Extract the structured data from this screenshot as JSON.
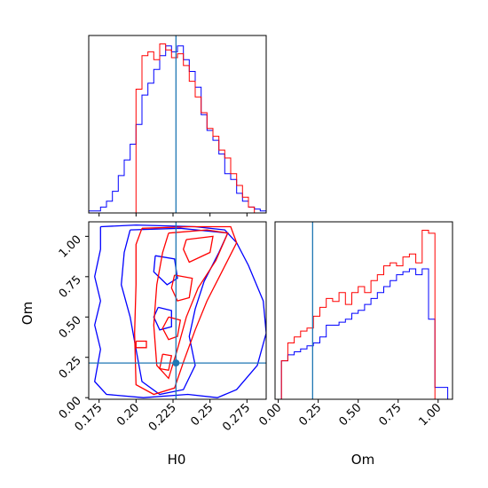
{
  "chart_data": {
    "type": "corner",
    "variables": [
      "H0",
      "Om"
    ],
    "truth": {
      "H0": 0.227,
      "Om": 0.215,
      "color": "#1f77b4"
    },
    "series_colors": {
      "blue": "#0000ff",
      "red": "#ff0000"
    },
    "panels": [
      {
        "id": "H0-marginal",
        "type": "histogram",
        "xvar": "H0",
        "xlim": [
          0.168,
          0.288
        ],
        "xticks": [
          0.175,
          0.2,
          0.225,
          0.25,
          0.275
        ],
        "ylabel": "",
        "series": [
          {
            "color_key": "blue",
            "bin_edges": [
              0.168,
              0.172,
              0.176,
              0.18,
              0.184,
              0.188,
              0.192,
              0.196,
              0.2,
              0.204,
              0.208,
              0.212,
              0.216,
              0.22,
              0.224,
              0.228,
              0.232,
              0.236,
              0.24,
              0.244,
              0.248,
              0.252,
              0.256,
              0.26,
              0.264,
              0.268,
              0.272,
              0.276,
              0.28,
              0.284,
              0.288
            ],
            "counts": [
              1,
              1,
              3,
              6,
              11,
              19,
              27,
              35,
              45,
              60,
              66,
              73,
              80,
              85,
              82,
              85,
              78,
              72,
              64,
              50,
              42,
              37,
              30,
              20,
              17,
              10,
              6,
              3,
              2,
              1
            ]
          },
          {
            "color_key": "red",
            "bin_edges": [
              0.168,
              0.172,
              0.176,
              0.18,
              0.184,
              0.188,
              0.192,
              0.196,
              0.2,
              0.204,
              0.208,
              0.212,
              0.216,
              0.22,
              0.224,
              0.228,
              0.232,
              0.236,
              0.24,
              0.244,
              0.248,
              0.252,
              0.256,
              0.26,
              0.264,
              0.268,
              0.272,
              0.276,
              0.28,
              0.284,
              0.288
            ],
            "counts": [
              0,
              0,
              0,
              0,
              0,
              0,
              0,
              0,
              63,
              80,
              82,
              78,
              86,
              83,
              79,
              81,
              75,
              67,
              59,
              51,
              43,
              39,
              32,
              28,
              20,
              14,
              8,
              3,
              0,
              0
            ]
          }
        ]
      },
      {
        "id": "Om-H0-joint",
        "type": "contour",
        "xvar": "H0",
        "yvar": "Om",
        "xlim": [
          0.168,
          0.288
        ],
        "ylim": [
          -0.01,
          1.09
        ],
        "xticks": [
          0.175,
          0.2,
          0.225,
          0.25,
          0.275
        ],
        "yticks": [
          0.0,
          0.25,
          0.5,
          0.75,
          1.0
        ],
        "xlabel": "H0",
        "ylabel": "Om",
        "contours": [
          {
            "color_key": "blue",
            "points": [
              [
                0.176,
                1.06
              ],
              [
                0.2,
                1.07
              ],
              [
                0.24,
                1.06
              ],
              [
                0.26,
                1.04
              ],
              [
                0.268,
                0.96
              ],
              [
                0.276,
                0.82
              ],
              [
                0.286,
                0.6
              ],
              [
                0.288,
                0.4
              ],
              [
                0.282,
                0.2
              ],
              [
                0.268,
                0.05
              ],
              [
                0.255,
                0.0
              ],
              [
                0.235,
                0.02
              ],
              [
                0.205,
                0.0
              ],
              [
                0.18,
                0.02
              ],
              [
                0.172,
                0.1
              ],
              [
                0.176,
                0.3
              ],
              [
                0.172,
                0.45
              ],
              [
                0.176,
                0.6
              ],
              [
                0.172,
                0.75
              ],
              [
                0.176,
                0.92
              ],
              [
                0.176,
                1.06
              ]
            ]
          },
          {
            "color_key": "blue",
            "points": [
              [
                0.196,
                1.04
              ],
              [
                0.23,
                1.05
              ],
              [
                0.262,
                1.02
              ],
              [
                0.256,
                0.9
              ],
              [
                0.246,
                0.72
              ],
              [
                0.24,
                0.55
              ],
              [
                0.236,
                0.38
              ],
              [
                0.24,
                0.2
              ],
              [
                0.232,
                0.05
              ],
              [
                0.216,
                0.02
              ],
              [
                0.204,
                0.1
              ],
              [
                0.2,
                0.3
              ],
              [
                0.196,
                0.5
              ],
              [
                0.19,
                0.7
              ],
              [
                0.192,
                0.9
              ],
              [
                0.196,
                1.04
              ]
            ]
          },
          {
            "color_key": "blue",
            "points": [
              [
                0.213,
                0.88
              ],
              [
                0.226,
                0.86
              ],
              [
                0.228,
                0.74
              ],
              [
                0.221,
                0.7
              ],
              [
                0.212,
                0.78
              ],
              [
                0.213,
                0.88
              ]
            ]
          },
          {
            "color_key": "blue",
            "points": [
              [
                0.215,
                0.56
              ],
              [
                0.224,
                0.54
              ],
              [
                0.224,
                0.44
              ],
              [
                0.216,
                0.42
              ],
              [
                0.212,
                0.5
              ],
              [
                0.215,
                0.56
              ]
            ]
          },
          {
            "color_key": "red",
            "points": [
              [
                0.204,
                1.05
              ],
              [
                0.236,
                1.06
              ],
              [
                0.264,
                1.06
              ],
              [
                0.268,
                0.96
              ],
              [
                0.258,
                0.78
              ],
              [
                0.248,
                0.6
              ],
              [
                0.24,
                0.42
              ],
              [
                0.232,
                0.22
              ],
              [
                0.226,
                0.06
              ],
              [
                0.212,
                0.02
              ],
              [
                0.2,
                0.08
              ],
              [
                0.199,
                0.4
              ],
              [
                0.2,
                0.7
              ],
              [
                0.2,
                0.95
              ],
              [
                0.204,
                1.05
              ]
            ]
          },
          {
            "color_key": "red",
            "points": [
              [
                0.222,
                1.02
              ],
              [
                0.248,
                1.04
              ],
              [
                0.262,
                1.02
              ],
              [
                0.254,
                0.85
              ],
              [
                0.242,
                0.68
              ],
              [
                0.234,
                0.5
              ],
              [
                0.228,
                0.3
              ],
              [
                0.222,
                0.12
              ],
              [
                0.214,
                0.2
              ],
              [
                0.212,
                0.45
              ],
              [
                0.214,
                0.7
              ],
              [
                0.218,
                0.9
              ],
              [
                0.222,
                1.02
              ]
            ]
          },
          {
            "color_key": "red",
            "points": [
              [
                0.234,
                0.98
              ],
              [
                0.252,
                1.0
              ],
              [
                0.25,
                0.9
              ],
              [
                0.236,
                0.84
              ],
              [
                0.232,
                0.92
              ],
              [
                0.234,
                0.98
              ]
            ]
          },
          {
            "color_key": "red",
            "points": [
              [
                0.226,
                0.76
              ],
              [
                0.238,
                0.74
              ],
              [
                0.236,
                0.62
              ],
              [
                0.228,
                0.6
              ],
              [
                0.224,
                0.68
              ],
              [
                0.226,
                0.76
              ]
            ]
          },
          {
            "color_key": "red",
            "points": [
              [
                0.222,
                0.5
              ],
              [
                0.23,
                0.48
              ],
              [
                0.228,
                0.38
              ],
              [
                0.222,
                0.36
              ],
              [
                0.218,
                0.43
              ],
              [
                0.222,
                0.5
              ]
            ]
          },
          {
            "color_key": "red",
            "points": [
              [
                0.2,
                0.35
              ],
              [
                0.207,
                0.35
              ],
              [
                0.207,
                0.31
              ],
              [
                0.2,
                0.31
              ],
              [
                0.2,
                0.35
              ]
            ]
          },
          {
            "color_key": "red",
            "points": [
              [
                0.218,
                0.27
              ],
              [
                0.224,
                0.26
              ],
              [
                0.222,
                0.17
              ],
              [
                0.216,
                0.18
              ],
              [
                0.218,
                0.27
              ]
            ]
          }
        ]
      },
      {
        "id": "Om-marginal",
        "type": "histogram",
        "xvar": "Om",
        "xlim": [
          -0.02,
          1.09
        ],
        "xticks": [
          0.0,
          0.25,
          0.5,
          0.75,
          1.0
        ],
        "xlabel": "Om",
        "series": [
          {
            "color_key": "blue",
            "bin_edges": [
              -0.02,
              0.02,
              0.06,
              0.1,
              0.14,
              0.18,
              0.22,
              0.26,
              0.3,
              0.34,
              0.38,
              0.42,
              0.46,
              0.5,
              0.54,
              0.58,
              0.62,
              0.66,
              0.7,
              0.74,
              0.78,
              0.82,
              0.86,
              0.9,
              0.94,
              0.98,
              1.02,
              1.06,
              1.09
            ],
            "counts": [
              0,
              13,
              15,
              16,
              17,
              18,
              19,
              21,
              25,
              25,
              26,
              27,
              29,
              30,
              32,
              34,
              36,
              38,
              40,
              42,
              43,
              44,
              42,
              44,
              27,
              4,
              4,
              0
            ]
          },
          {
            "color_key": "red",
            "bin_edges": [
              -0.02,
              0.02,
              0.06,
              0.1,
              0.14,
              0.18,
              0.22,
              0.26,
              0.3,
              0.34,
              0.38,
              0.42,
              0.46,
              0.5,
              0.54,
              0.58,
              0.62,
              0.66,
              0.7,
              0.74,
              0.78,
              0.82,
              0.86,
              0.9,
              0.94,
              0.98,
              1.02,
              1.06,
              1.09
            ],
            "counts": [
              0,
              13,
              19,
              21,
              23,
              24,
              28,
              31,
              34,
              33,
              36,
              32,
              36,
              38,
              36,
              40,
              42,
              45,
              46,
              45,
              48,
              49,
              46,
              57,
              56,
              0,
              0,
              0
            ]
          }
        ]
      }
    ]
  }
}
